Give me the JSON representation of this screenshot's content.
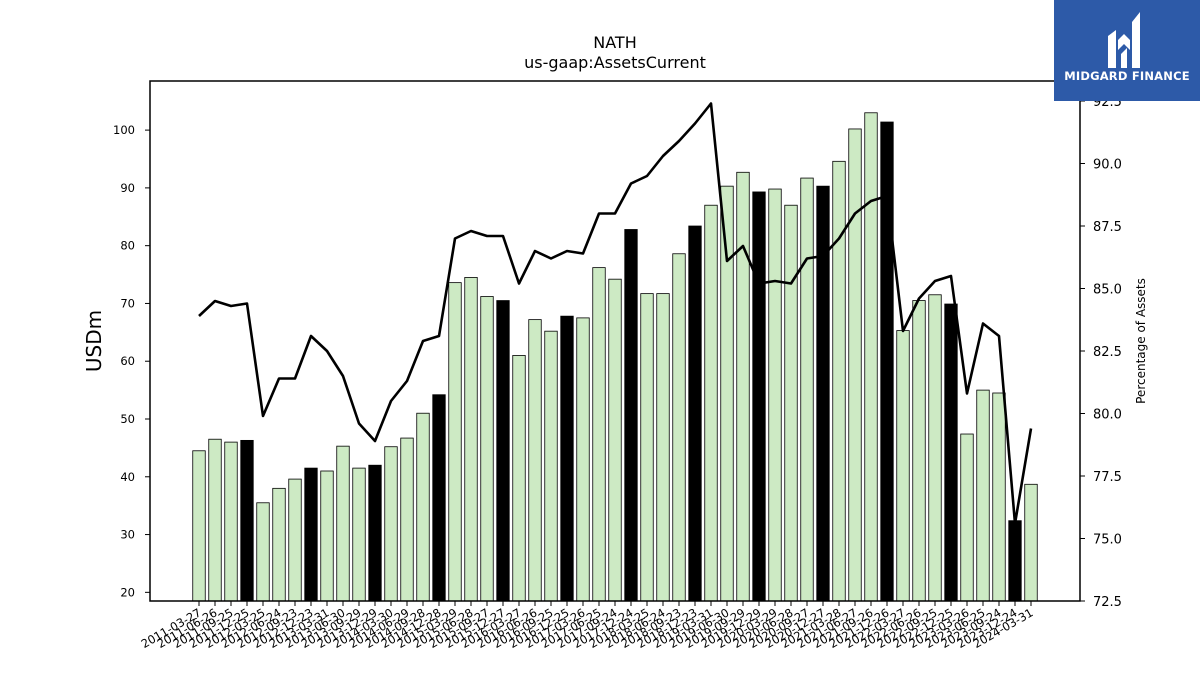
{
  "chart_data": {
    "type": "bar",
    "title": "NATH",
    "subtitle": "us-gaap:AssetsCurrent",
    "ylabel": "USDm",
    "y2label": "Percentage of Assets",
    "ylim": [
      18.5,
      108.5
    ],
    "y2lim": [
      72.5,
      93.3
    ],
    "yticks": [
      20,
      30,
      40,
      50,
      60,
      70,
      80,
      90,
      100
    ],
    "y2ticks": [
      "72.5",
      "75.0",
      "77.5",
      "80.0",
      "82.5",
      "85.0",
      "87.5",
      "90.0",
      "92.5"
    ],
    "colors": {
      "bar_light": "#cdeac4",
      "bar_dark": "#000000",
      "line": "#000000"
    },
    "categories": [
      "2011-03-27",
      "2011-06-26",
      "2011-09-25",
      "2011-12-25",
      "2012-03-25",
      "2012-06-24",
      "2012-09-23",
      "2012-12-23",
      "2013-03-31",
      "2013-06-30",
      "2013-09-29",
      "2013-12-29",
      "2014-03-30",
      "2014-06-29",
      "2014-09-28",
      "2014-12-28",
      "2015-03-29",
      "2015-06-28",
      "2015-09-27",
      "2015-12-27",
      "2016-03-27",
      "2016-06-26",
      "2016-09-25",
      "2016-12-25",
      "2017-03-26",
      "2017-06-25",
      "2017-09-24",
      "2017-12-24",
      "2018-03-25",
      "2018-06-24",
      "2018-09-23",
      "2018-12-23",
      "2019-03-31",
      "2019-06-30",
      "2019-09-29",
      "2019-12-29",
      "2020-03-29",
      "2020-06-28",
      "2020-09-27",
      "2020-12-27",
      "2021-03-28",
      "2021-06-27",
      "2021-09-26",
      "2021-12-26",
      "2022-03-27",
      "2022-06-26",
      "2022-09-25",
      "2022-12-25",
      "2023-03-26",
      "2023-06-25",
      "2023-09-24",
      "2023-12-24",
      "2024-03-31"
    ],
    "xticks_shown": [
      "2011-03-27",
      "2011-06-26",
      "2011-09-25",
      "2011-12-25",
      "2012-03-25",
      "2012-06-24",
      "2012-09-23",
      "2012-12-23",
      "2013-03-31",
      "2013-06-30",
      "2013-09-29",
      "2013-12-29",
      "2014-03-30",
      "2014-06-29",
      "2014-09-28",
      "2014-12-28",
      "2015-03-29",
      "2015-06-28",
      "2015-09-27",
      "2015-12-27",
      "2016-03-27",
      "2016-06-26",
      "2016-09-25",
      "2016-12-25",
      "2017-03-26",
      "2017-06-25",
      "2017-09-24",
      "2017-12-24",
      "2018-03-25",
      "2018-06-24",
      "2018-09-23",
      "2018-12-23",
      "2019-03-31",
      "2019-06-30",
      "2019-09-29",
      "2019-12-29",
      "2020-03-29",
      "2020-06-28",
      "2020-09-27",
      "2020-12-27",
      "2021-03-28",
      "2021-06-27",
      "2021-09-26",
      "2021-12-26",
      "2022-03-27",
      "2022-06-26",
      "2022-09-25",
      "2022-12-25",
      "2023-03-26",
      "2023-06-25",
      "2023-09-24",
      "2023-12-24",
      "2024-03-31"
    ],
    "series": [
      {
        "type": "bar",
        "axis": "left",
        "values": [
          44.5,
          46.5,
          46.0,
          46.3,
          35.5,
          38.0,
          39.6,
          41.5,
          41.0,
          45.3,
          41.5,
          42.0,
          45.2,
          46.7,
          51.0,
          54.2,
          73.6,
          74.5,
          71.2,
          70.5,
          61.0,
          67.2,
          65.2,
          67.8,
          67.5,
          76.2,
          74.2,
          82.8,
          71.7,
          71.7,
          78.6,
          83.4,
          87.0,
          90.3,
          92.7,
          89.3,
          89.8,
          87.0,
          91.7,
          90.3,
          94.6,
          100.2,
          103.0,
          101.4,
          65.3,
          70.5,
          71.5,
          69.9,
          47.4,
          55.0,
          54.5,
          32.4,
          38.7
        ],
        "dark": [
          false,
          false,
          false,
          true,
          false,
          false,
          false,
          true,
          false,
          false,
          false,
          true,
          false,
          false,
          false,
          true,
          false,
          false,
          false,
          true,
          false,
          false,
          false,
          true,
          false,
          false,
          false,
          true,
          false,
          false,
          false,
          true,
          false,
          false,
          false,
          true,
          false,
          false,
          false,
          true,
          false,
          false,
          false,
          true,
          false,
          false,
          false,
          true,
          false,
          false,
          false,
          true,
          false
        ]
      },
      {
        "type": "line",
        "axis": "right",
        "values": [
          83.9,
          84.5,
          84.3,
          84.4,
          79.9,
          81.4,
          81.4,
          83.1,
          82.5,
          81.5,
          79.6,
          78.9,
          80.5,
          81.3,
          82.9,
          83.1,
          87.0,
          87.3,
          87.1,
          87.1,
          85.2,
          86.5,
          86.2,
          86.5,
          86.4,
          88.0,
          88.0,
          89.2,
          89.5,
          90.3,
          90.9,
          91.6,
          92.4,
          86.1,
          86.7,
          85.2,
          85.3,
          85.2,
          86.2,
          86.3,
          87.0,
          88.0,
          88.5,
          88.7,
          83.3,
          84.6,
          85.3,
          85.5,
          80.8,
          83.6,
          83.1,
          75.6,
          79.4
        ]
      }
    ]
  },
  "logo": {
    "text": "MIDGARD FINANCE"
  }
}
